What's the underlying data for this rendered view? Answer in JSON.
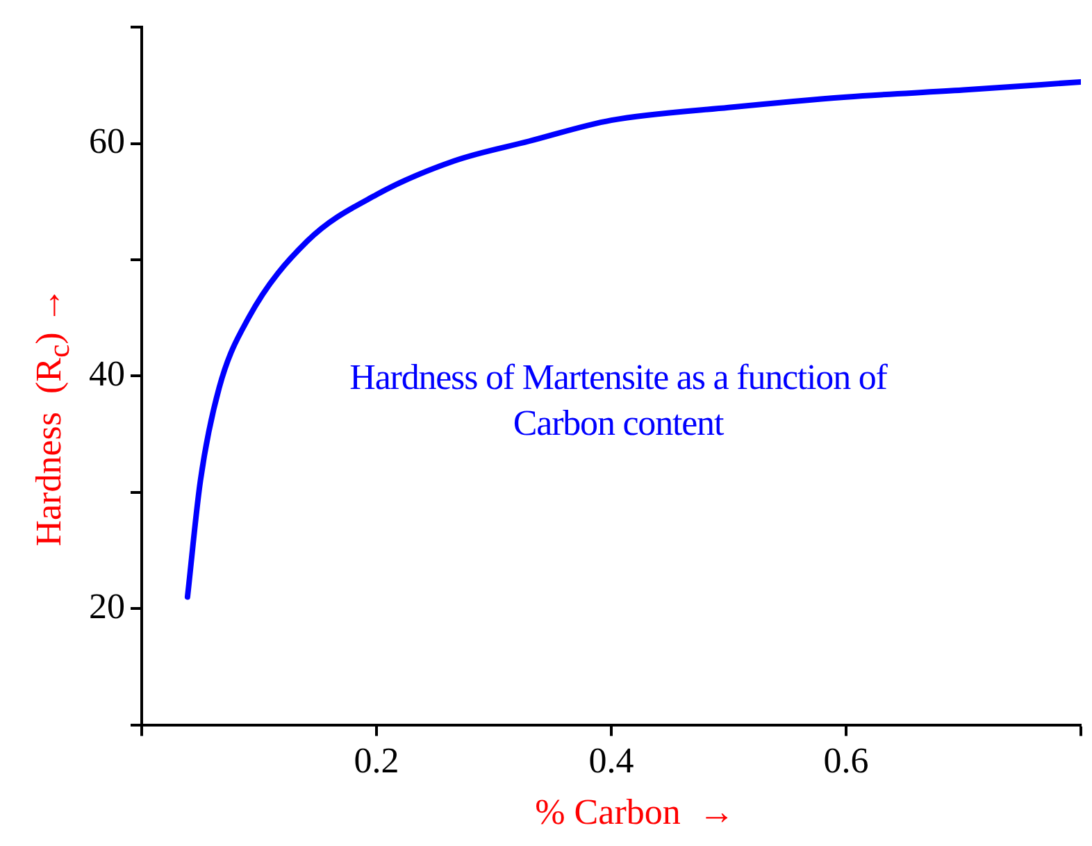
{
  "chart_data": {
    "type": "line",
    "xlabel": "% Carbon  →",
    "ylabel": "Hardness  (R$_{c}$) →",
    "annotations": [
      "Hardness of Martensite as a function of Carbon content"
    ],
    "x": [
      0.039,
      0.05,
      0.066,
      0.091,
      0.141,
      0.2,
      0.266,
      0.33,
      0.4,
      0.5,
      0.6,
      0.7,
      0.8
    ],
    "series": [
      {
        "color": "#0000ff",
        "values": [
          21,
          31,
          39,
          45,
          51.6,
          55.6,
          58.5,
          60.2,
          62,
          63.1,
          64,
          64.6,
          65.3
        ]
      }
    ],
    "xlim": [
      0,
      0.8
    ],
    "xticks": [
      {
        "value": 0,
        "label": null
      },
      0.2,
      0.4,
      0.6,
      {
        "value": 0.8,
        "label": null
      }
    ],
    "ylim": [
      10,
      70
    ],
    "yticks": [
      {
        "value": 10,
        "label": null
      },
      20,
      {
        "value": 30,
        "label": null
      },
      40,
      {
        "value": 50,
        "label": null
      },
      60,
      {
        "value": 70,
        "label": null
      }
    ],
    "grid": false,
    "legend": false,
    "marker": "none",
    "line_style": "solid"
  }
}
